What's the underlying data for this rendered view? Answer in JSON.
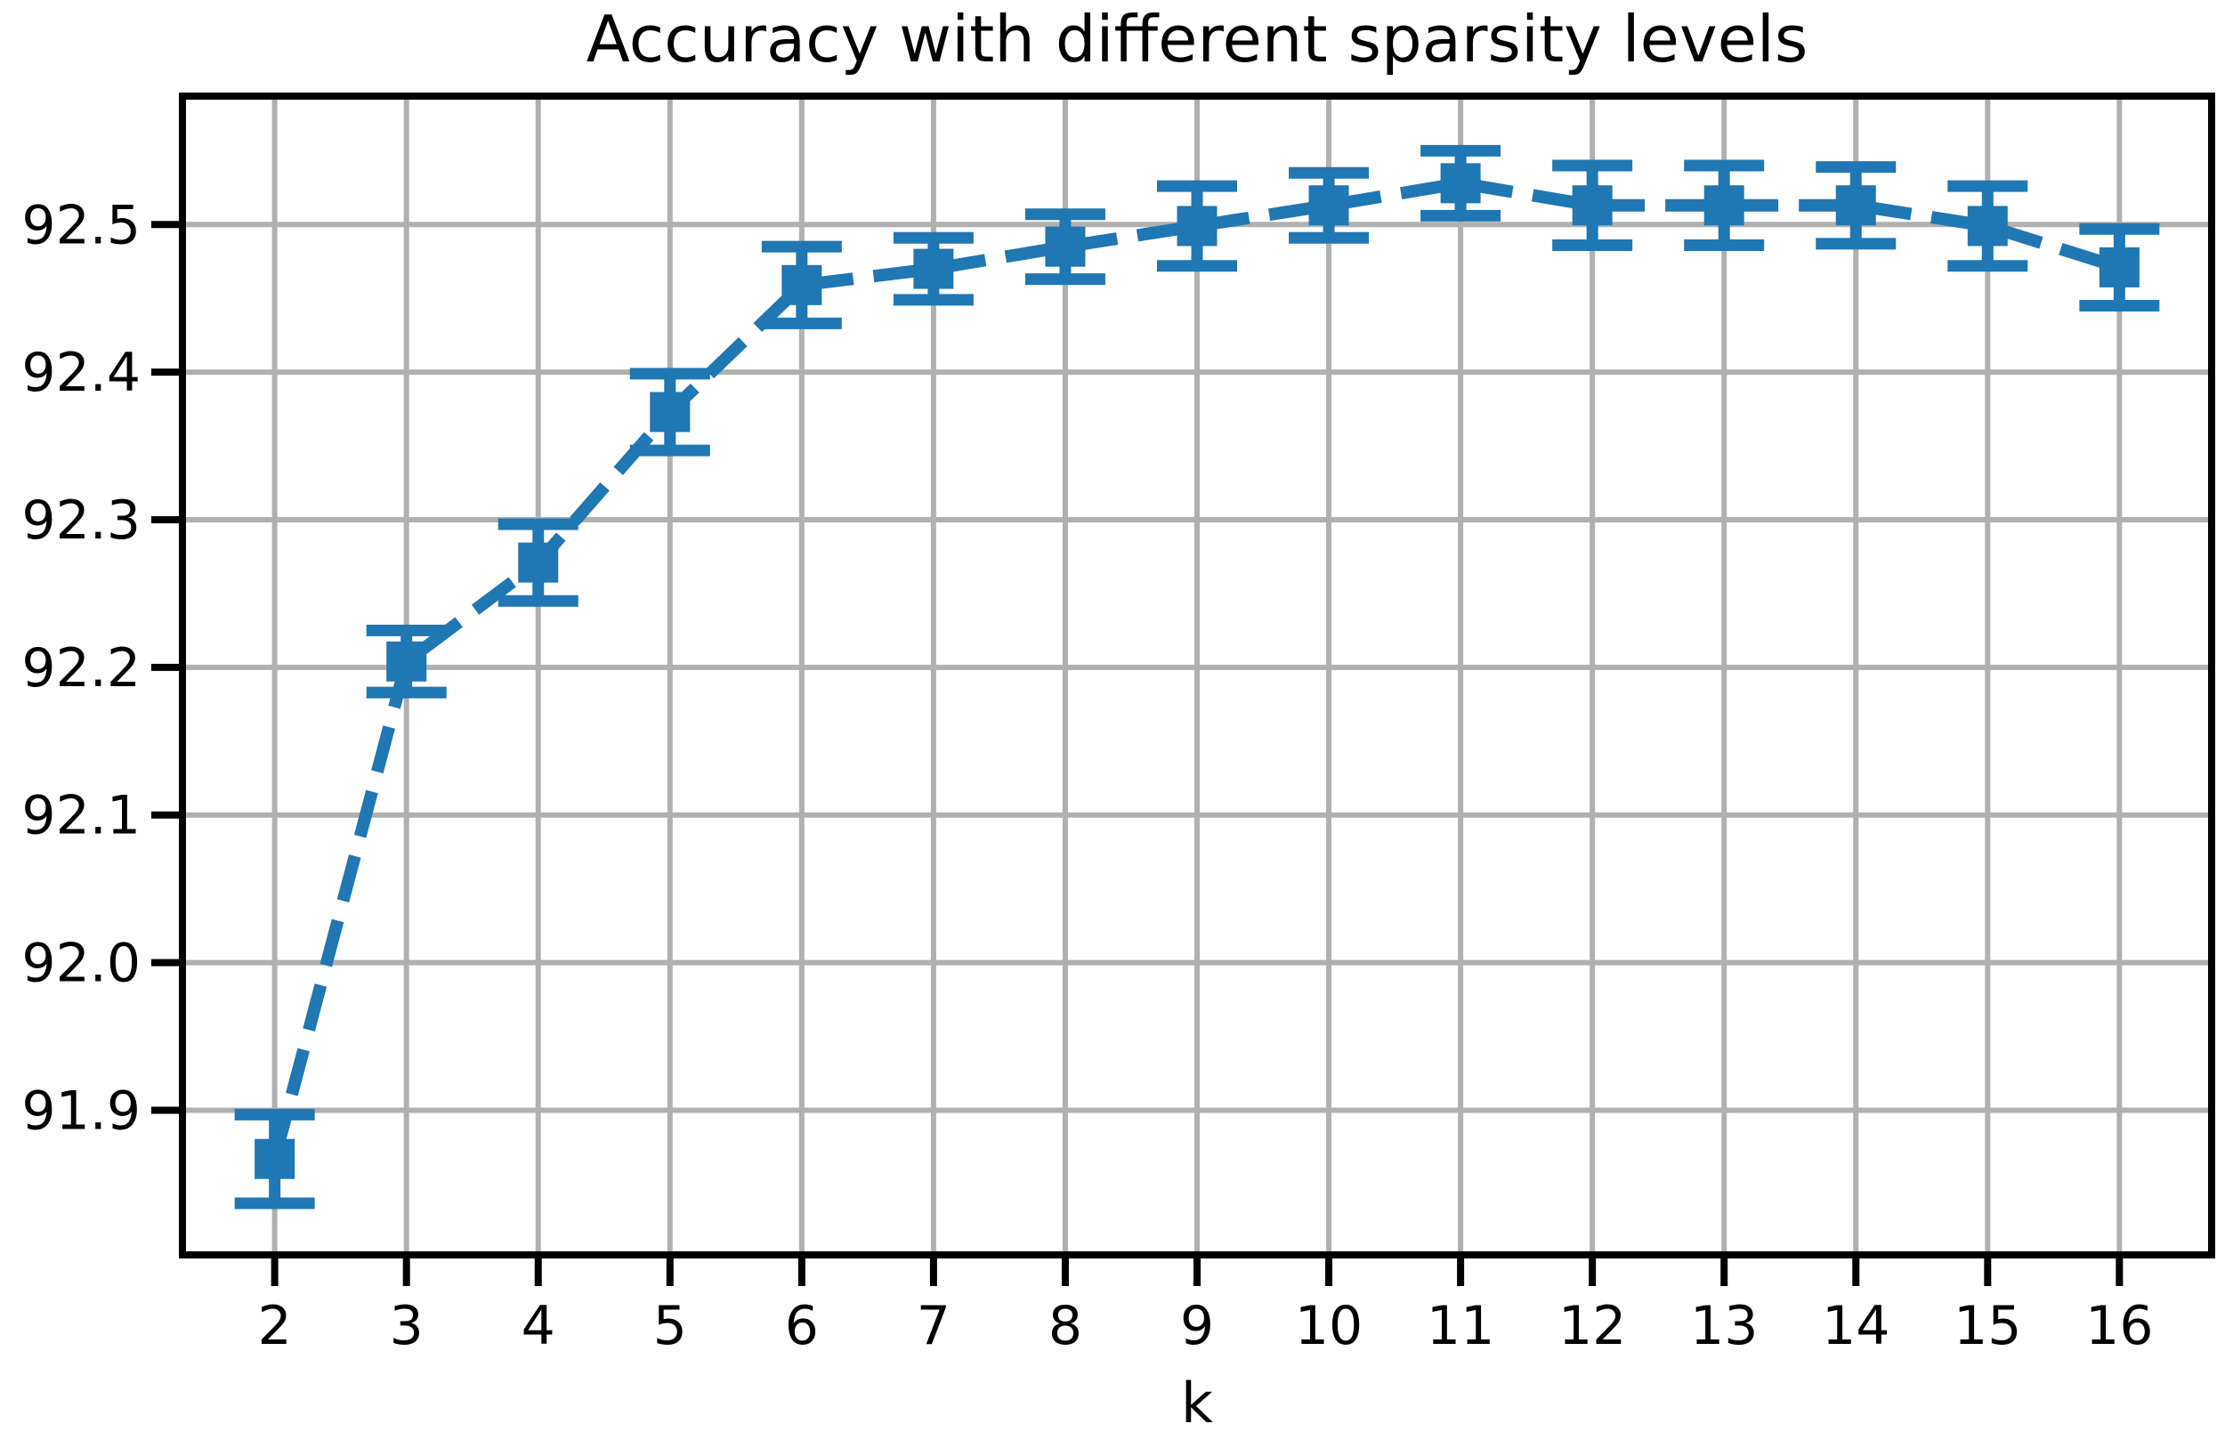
{
  "chart_data": {
    "type": "line",
    "title": "Accuracy with different sparsity levels",
    "xlabel": "k",
    "ylabel": "",
    "x": [
      2,
      3,
      4,
      5,
      6,
      7,
      8,
      9,
      10,
      11,
      12,
      13,
      14,
      15,
      16
    ],
    "series": [
      {
        "name": "accuracy",
        "values": [
          91.867,
          92.204,
          92.271,
          92.373,
          92.459,
          92.47,
          92.485,
          92.499,
          92.513,
          92.528,
          92.513,
          92.513,
          92.513,
          92.499,
          92.471
        ],
        "yerr": [
          0.03,
          0.021,
          0.026,
          0.026,
          0.026,
          0.021,
          0.022,
          0.027,
          0.022,
          0.022,
          0.027,
          0.027,
          0.026,
          0.027,
          0.026
        ]
      }
    ],
    "x_tick_labels": [
      "2",
      "3",
      "4",
      "5",
      "6",
      "7",
      "8",
      "9",
      "10",
      "11",
      "12",
      "13",
      "14",
      "15",
      "16"
    ],
    "y_ticks": [
      91.9,
      92.0,
      92.1,
      92.2,
      92.3,
      92.4,
      92.5
    ],
    "y_tick_labels": [
      "91.9",
      "92.0",
      "92.1",
      "92.2",
      "92.3",
      "92.4",
      "92.5"
    ],
    "xlim": [
      1.3,
      16.7
    ],
    "ylim": [
      91.802,
      92.587
    ],
    "grid": true,
    "legend": "none",
    "line_style": "dashed",
    "marker": "square",
    "line_color": "#1f77b4",
    "grid_color": "#b0b0b0",
    "axis_color": "#000000",
    "text_color": "#000000"
  }
}
